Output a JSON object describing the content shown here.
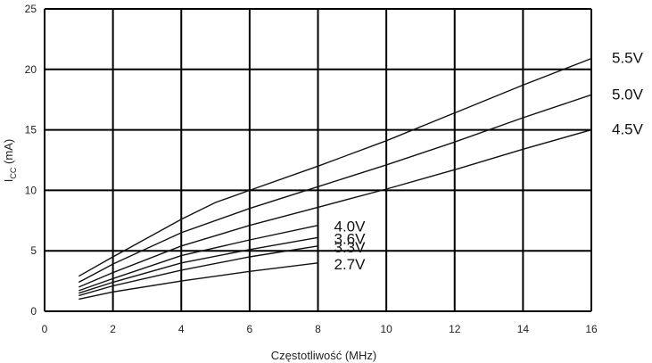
{
  "chart_data": {
    "type": "line",
    "xlabel": "Częstotliwość (MHz)",
    "ylabel_main": "I",
    "ylabel_sub": "CC",
    "ylabel_unit": " (mA)",
    "xlim": [
      0,
      16
    ],
    "ylim": [
      0,
      25
    ],
    "x_ticks": [
      0,
      2,
      4,
      6,
      8,
      10,
      12,
      14,
      16
    ],
    "y_ticks": [
      0,
      5,
      10,
      15,
      20,
      25
    ],
    "grid": true,
    "series": [
      {
        "name": "5.5V",
        "x": [
          1,
          2,
          4,
          5,
          6,
          8,
          10,
          12,
          14,
          16
        ],
        "y": [
          2.9,
          4.5,
          7.6,
          9.0,
          10.0,
          12.0,
          14.1,
          16.4,
          18.7,
          20.9
        ]
      },
      {
        "name": "5.0V",
        "x": [
          1,
          2,
          4,
          6,
          8,
          10,
          12,
          14,
          16
        ],
        "y": [
          2.4,
          3.9,
          6.5,
          8.5,
          10.3,
          12.1,
          14.0,
          16.0,
          17.9
        ]
      },
      {
        "name": "4.5V",
        "x": [
          1,
          2,
          4,
          6,
          8,
          10,
          12,
          14,
          16
        ],
        "y": [
          2.0,
          3.2,
          5.4,
          7.1,
          8.6,
          10.1,
          11.7,
          13.4,
          15.0
        ]
      },
      {
        "name": "4.0V",
        "x": [
          1,
          2,
          4,
          6,
          8
        ],
        "y": [
          1.7,
          2.7,
          4.6,
          5.9,
          7.1
        ]
      },
      {
        "name": "3.6V",
        "x": [
          1,
          2,
          4,
          6,
          8
        ],
        "y": [
          1.5,
          2.4,
          4.0,
          5.1,
          6.1
        ]
      },
      {
        "name": "3.3V",
        "x": [
          1,
          2,
          4,
          6,
          8
        ],
        "y": [
          1.3,
          2.1,
          3.4,
          4.5,
          5.4
        ]
      },
      {
        "name": "2.7V",
        "x": [
          1,
          2,
          4,
          6,
          8
        ],
        "y": [
          1.0,
          1.6,
          2.5,
          3.3,
          4.0
        ]
      }
    ]
  }
}
